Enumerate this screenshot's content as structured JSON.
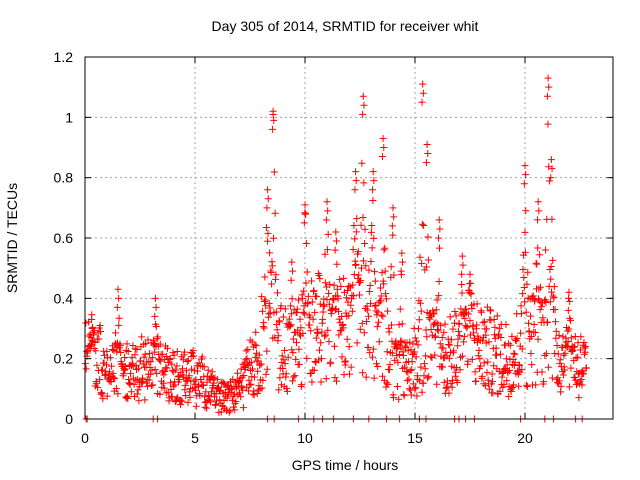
{
  "chart_data": {
    "type": "scatter",
    "title": "Day 305 of 2014, SRMTID for receiver whit",
    "xlabel": "GPS time / hours",
    "ylabel": "SRMTID / TECUs",
    "xlim": [
      0,
      24
    ],
    "ylim": [
      0,
      1.2
    ],
    "x_ticks": [
      0,
      5,
      10,
      15,
      20
    ],
    "x_tick_labels": [
      "0",
      "5",
      "10",
      "15",
      "20"
    ],
    "y_ticks": [
      0,
      0.2,
      0.4,
      0.6,
      0.8,
      1.0,
      1.2
    ],
    "y_tick_labels": [
      "0",
      "0.2",
      "0.4",
      "0.6",
      "0.8",
      "1",
      "1.2"
    ],
    "grid": true,
    "marker": "+",
    "colors": {
      "series": "#ff0000",
      "grid": "#a0a0a0",
      "axis": "#000000"
    },
    "series": [
      {
        "name": "SRMTID",
        "envelope_note": "Dense + markers approximating the plotted time series; approximate typical level and peak spikes in TECU",
        "baseline": [
          [
            0.0,
            0.2
          ],
          [
            0.5,
            0.22
          ],
          [
            1.0,
            0.14
          ],
          [
            1.5,
            0.16
          ],
          [
            2.0,
            0.15
          ],
          [
            2.5,
            0.17
          ],
          [
            3.0,
            0.18
          ],
          [
            3.5,
            0.16
          ],
          [
            4.0,
            0.13
          ],
          [
            4.5,
            0.15
          ],
          [
            5.0,
            0.13
          ],
          [
            5.5,
            0.12
          ],
          [
            6.0,
            0.08
          ],
          [
            6.5,
            0.06
          ],
          [
            7.0,
            0.09
          ],
          [
            7.5,
            0.16
          ],
          [
            8.0,
            0.25
          ],
          [
            8.5,
            0.3
          ],
          [
            9.0,
            0.22
          ],
          [
            9.5,
            0.24
          ],
          [
            10.0,
            0.28
          ],
          [
            10.5,
            0.3
          ],
          [
            11.0,
            0.32
          ],
          [
            11.5,
            0.3
          ],
          [
            12.0,
            0.33
          ],
          [
            12.5,
            0.35
          ],
          [
            13.0,
            0.32
          ],
          [
            13.5,
            0.3
          ],
          [
            14.0,
            0.18
          ],
          [
            14.5,
            0.14
          ],
          [
            15.0,
            0.2
          ],
          [
            15.5,
            0.25
          ],
          [
            16.0,
            0.22
          ],
          [
            16.5,
            0.2
          ],
          [
            17.0,
            0.24
          ],
          [
            17.5,
            0.27
          ],
          [
            18.0,
            0.24
          ],
          [
            18.5,
            0.22
          ],
          [
            19.0,
            0.2
          ],
          [
            19.5,
            0.22
          ],
          [
            20.0,
            0.25
          ],
          [
            20.5,
            0.28
          ],
          [
            21.0,
            0.26
          ],
          [
            21.5,
            0.22
          ],
          [
            22.0,
            0.2
          ],
          [
            22.5,
            0.18
          ],
          [
            22.8,
            0.16
          ]
        ],
        "spikes": [
          [
            0.3,
            0.33
          ],
          [
            1.5,
            0.43
          ],
          [
            3.2,
            0.4
          ],
          [
            8.3,
            0.76
          ],
          [
            8.55,
            1.02
          ],
          [
            9.4,
            0.52
          ],
          [
            10.0,
            0.71
          ],
          [
            11.0,
            0.72
          ],
          [
            11.4,
            0.62
          ],
          [
            12.3,
            0.82
          ],
          [
            12.65,
            1.07
          ],
          [
            13.1,
            0.82
          ],
          [
            13.55,
            0.93
          ],
          [
            14.0,
            0.7
          ],
          [
            14.4,
            0.55
          ],
          [
            15.35,
            1.11
          ],
          [
            15.55,
            0.91
          ],
          [
            16.1,
            0.66
          ],
          [
            17.15,
            0.54
          ],
          [
            17.5,
            0.48
          ],
          [
            20.0,
            0.84
          ],
          [
            20.6,
            0.72
          ],
          [
            21.05,
            1.13
          ],
          [
            21.2,
            0.86
          ],
          [
            22.0,
            0.42
          ]
        ],
        "zero_markers": [
          0.05,
          0.1,
          3.1,
          3.3,
          8.3,
          8.6,
          9.7,
          10.4,
          10.8,
          11.3,
          12.2,
          12.9,
          13.7,
          14.3,
          15.2,
          15.5,
          16.8,
          17.0,
          17.3,
          17.7,
          19.8,
          20.9,
          21.3,
          22.3,
          22.6
        ]
      }
    ]
  }
}
